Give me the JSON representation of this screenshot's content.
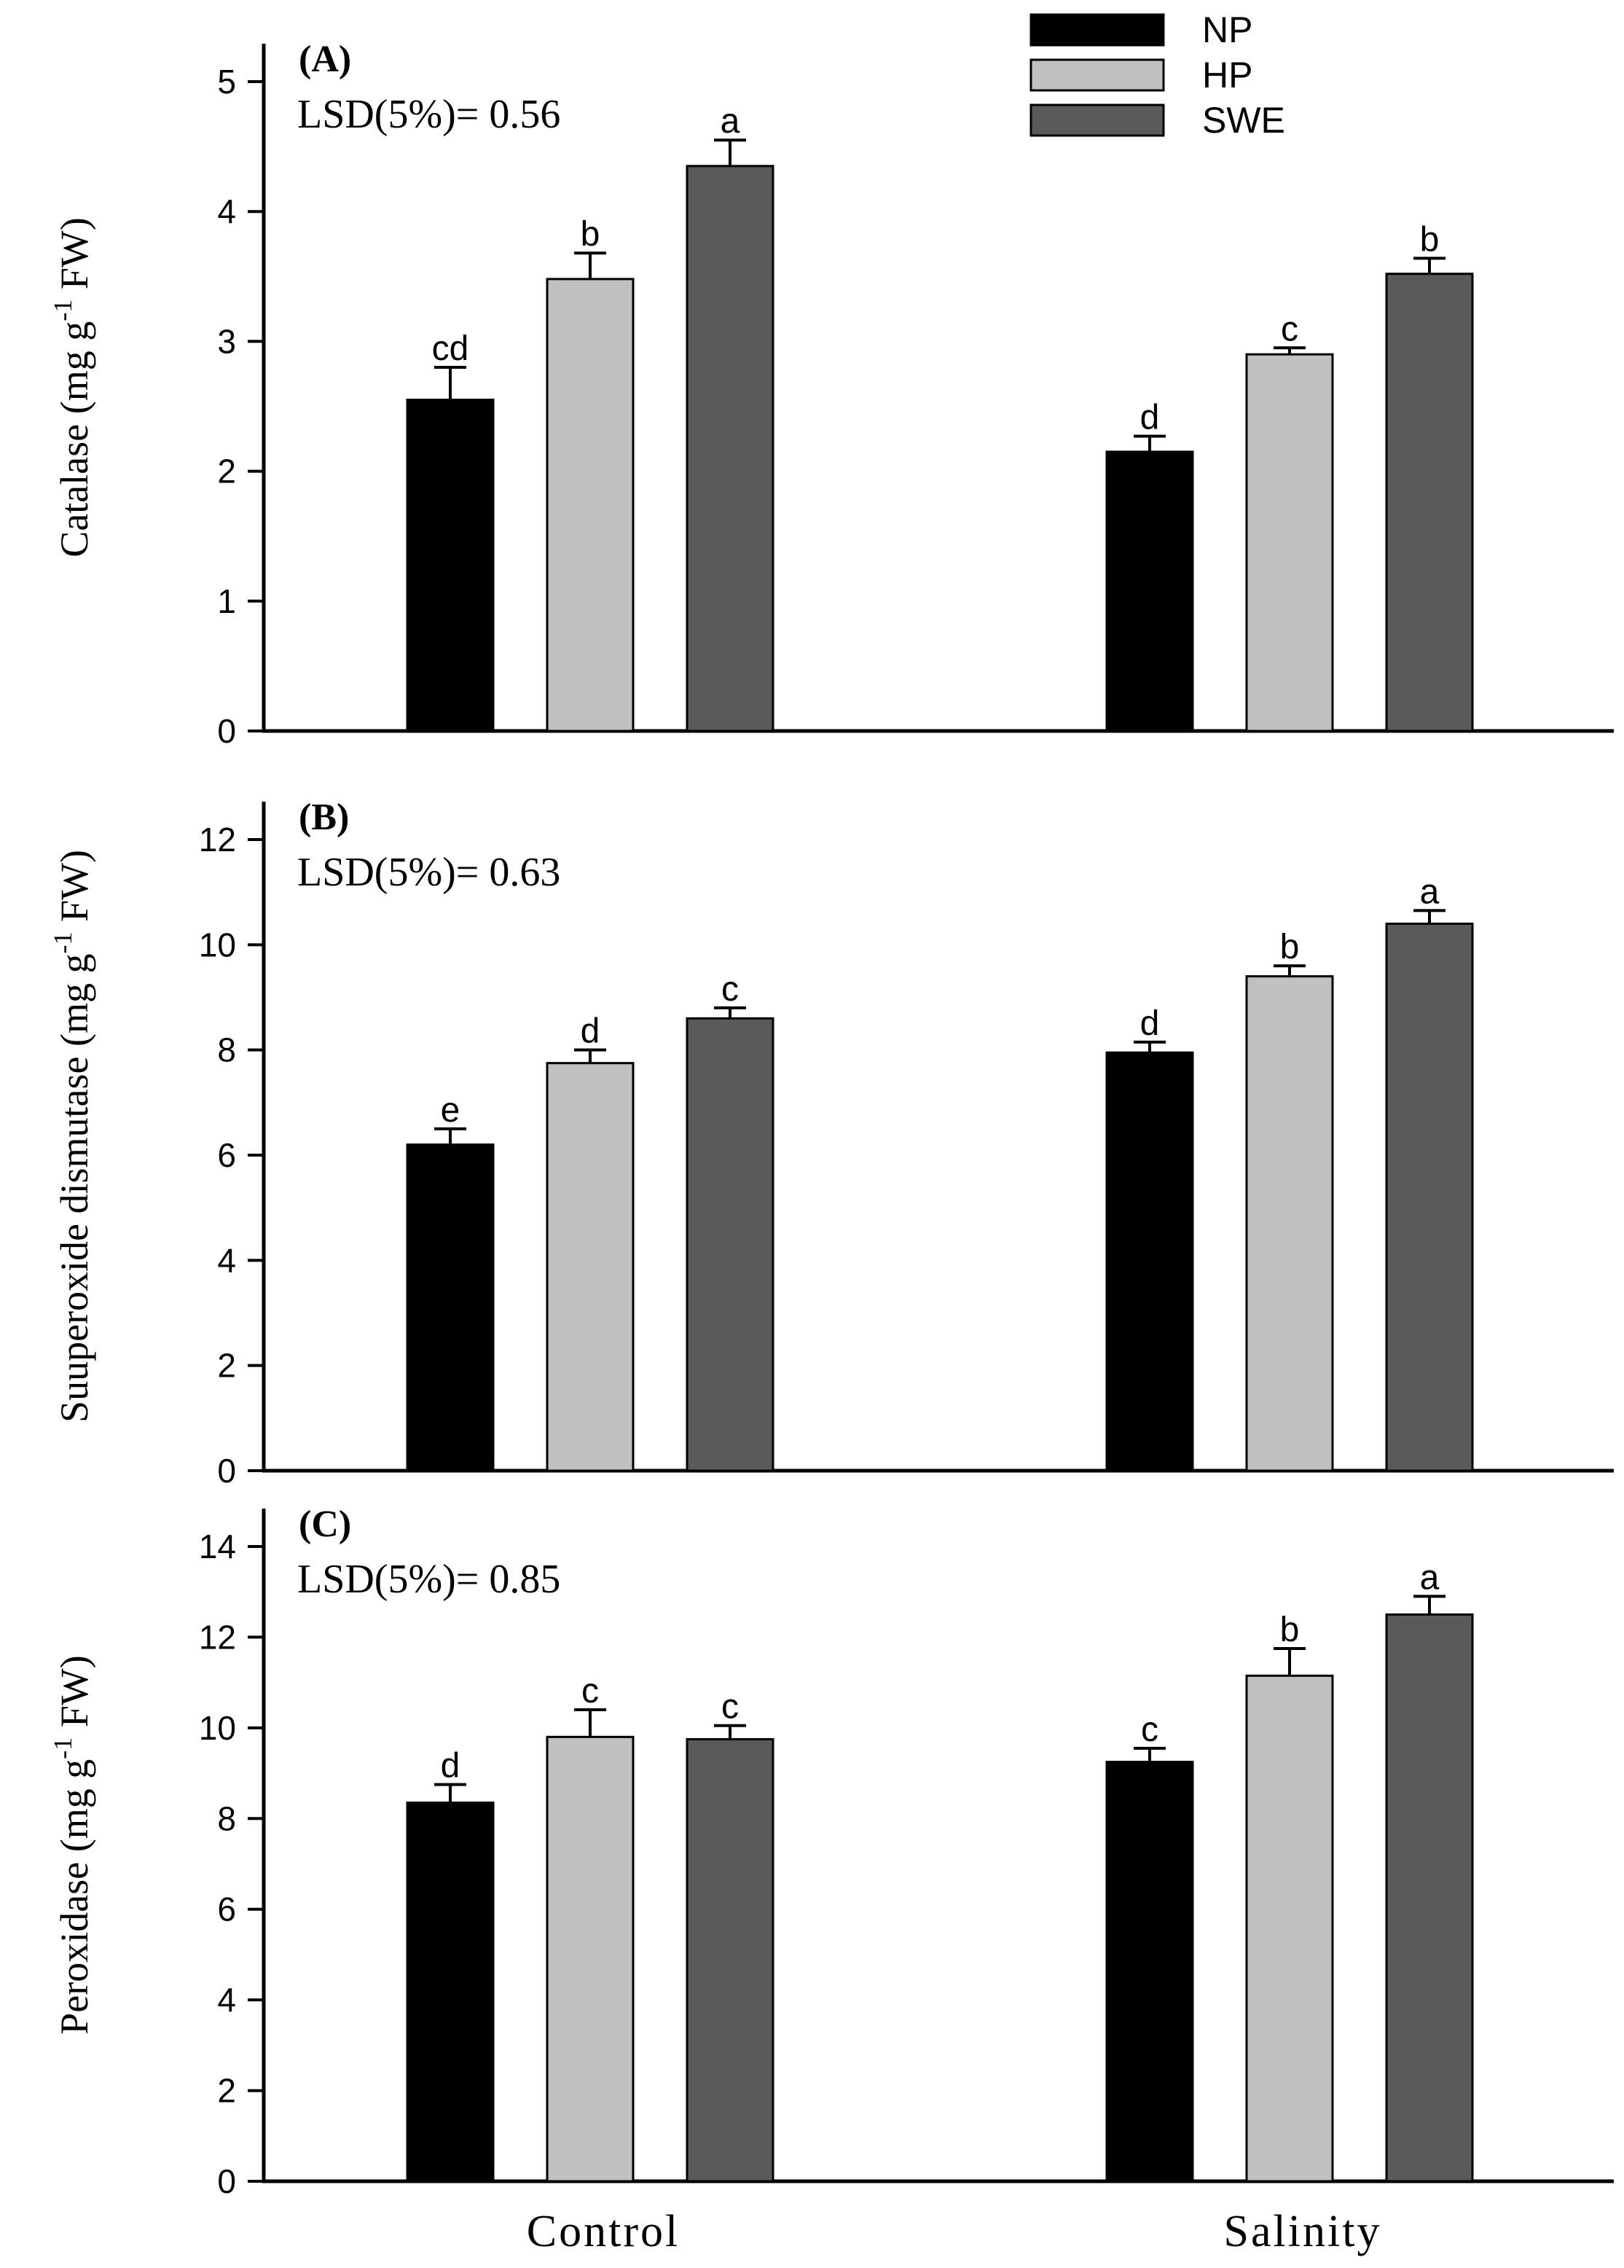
{
  "legend": [
    {
      "name": "NP",
      "color": "#000000"
    },
    {
      "name": "HP",
      "color": "#c0c0c0"
    },
    {
      "name": "SWE",
      "color": "#5a5a5a"
    }
  ],
  "categories": [
    "Control",
    "Salinity"
  ],
  "chart_data": [
    {
      "type": "bar",
      "panel_label": "(A)",
      "annotation": "LSD(5%)= 0.56",
      "ylabel_main": "Catalase (mg g",
      "ylabel_sup": "-1",
      "ylabel_end": " FW)",
      "ylim": [
        0,
        5
      ],
      "yticks": [
        0,
        1,
        2,
        3,
        4,
        5
      ],
      "categories": [
        "Control",
        "Salinity"
      ],
      "series": [
        {
          "name": "NP",
          "values": [
            2.55,
            2.15
          ],
          "errors": [
            0.25,
            0.12
          ],
          "letters": [
            "cd",
            "d"
          ]
        },
        {
          "name": "HP",
          "values": [
            3.48,
            2.9
          ],
          "errors": [
            0.2,
            0.05
          ],
          "letters": [
            "b",
            "c"
          ]
        },
        {
          "name": "SWE",
          "values": [
            4.35,
            3.52
          ],
          "errors": [
            0.2,
            0.12
          ],
          "letters": [
            "a",
            "b"
          ]
        }
      ],
      "grid": false
    },
    {
      "type": "bar",
      "panel_label": "(B)",
      "annotation": "LSD(5%)= 0.63",
      "ylabel_main": "Suuperoxide dismutase (mg g",
      "ylabel_sup": "-1",
      "ylabel_end": " FW)",
      "ylim": [
        0,
        12
      ],
      "yticks": [
        0,
        2,
        4,
        6,
        8,
        10,
        12
      ],
      "categories": [
        "Control",
        "Salinity"
      ],
      "series": [
        {
          "name": "NP",
          "values": [
            6.2,
            7.95
          ],
          "errors": [
            0.3,
            0.2
          ],
          "letters": [
            "e",
            "d"
          ]
        },
        {
          "name": "HP",
          "values": [
            7.75,
            9.4
          ],
          "errors": [
            0.25,
            0.2
          ],
          "letters": [
            "d",
            "b"
          ]
        },
        {
          "name": "SWE",
          "values": [
            8.6,
            10.4
          ],
          "errors": [
            0.2,
            0.25
          ],
          "letters": [
            "c",
            "a"
          ]
        }
      ],
      "grid": false
    },
    {
      "type": "bar",
      "panel_label": "(C)",
      "annotation": "LSD(5%)= 0.85",
      "ylabel_main": "Peroxidase (mg g",
      "ylabel_sup": "-1",
      "ylabel_end": " FW)",
      "ylim": [
        0,
        14
      ],
      "yticks": [
        0,
        2,
        4,
        6,
        8,
        10,
        12,
        14
      ],
      "categories": [
        "Control",
        "Salinity"
      ],
      "series": [
        {
          "name": "NP",
          "values": [
            8.35,
            9.25
          ],
          "errors": [
            0.4,
            0.3
          ],
          "letters": [
            "d",
            "c"
          ]
        },
        {
          "name": "HP",
          "values": [
            9.8,
            11.15
          ],
          "errors": [
            0.6,
            0.6
          ],
          "letters": [
            "c",
            "b"
          ]
        },
        {
          "name": "SWE",
          "values": [
            9.75,
            12.5
          ],
          "errors": [
            0.3,
            0.4
          ],
          "letters": [
            "c",
            "a"
          ]
        }
      ],
      "grid": false
    }
  ]
}
